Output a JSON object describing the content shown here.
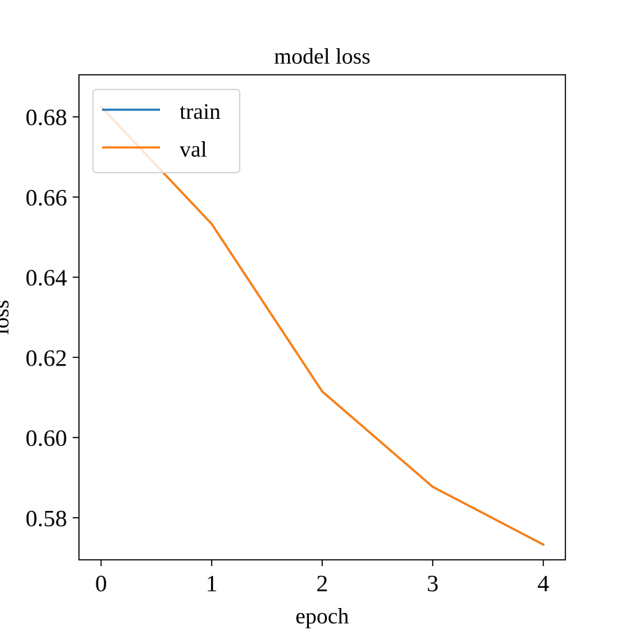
{
  "chart_data": {
    "type": "line",
    "title": "model loss",
    "xlabel": "epoch",
    "ylabel": "loss",
    "x": [
      0,
      1,
      2,
      3,
      4
    ],
    "xlim": [
      -0.2,
      4.2
    ],
    "ylim": [
      0.5695,
      0.6905
    ],
    "xticks": [
      0,
      1,
      2,
      3,
      4
    ],
    "yticks": [
      0.58,
      0.6,
      0.62,
      0.64,
      0.66,
      0.68
    ],
    "xtick_labels": [
      "0",
      "1",
      "2",
      "3",
      "4"
    ],
    "ytick_labels": [
      "0.58",
      "0.60",
      "0.62",
      "0.64",
      "0.66",
      "0.68"
    ],
    "legend_position": "upper-left",
    "grid": false,
    "series": [
      {
        "name": "train",
        "color": "#1f77b4",
        "values": [
          0.6825,
          0.6533,
          0.6115,
          0.5877,
          0.5733
        ]
      },
      {
        "name": "val",
        "color": "#ff7f0e",
        "values": [
          0.6825,
          0.6533,
          0.6115,
          0.5877,
          0.5733
        ]
      }
    ]
  }
}
